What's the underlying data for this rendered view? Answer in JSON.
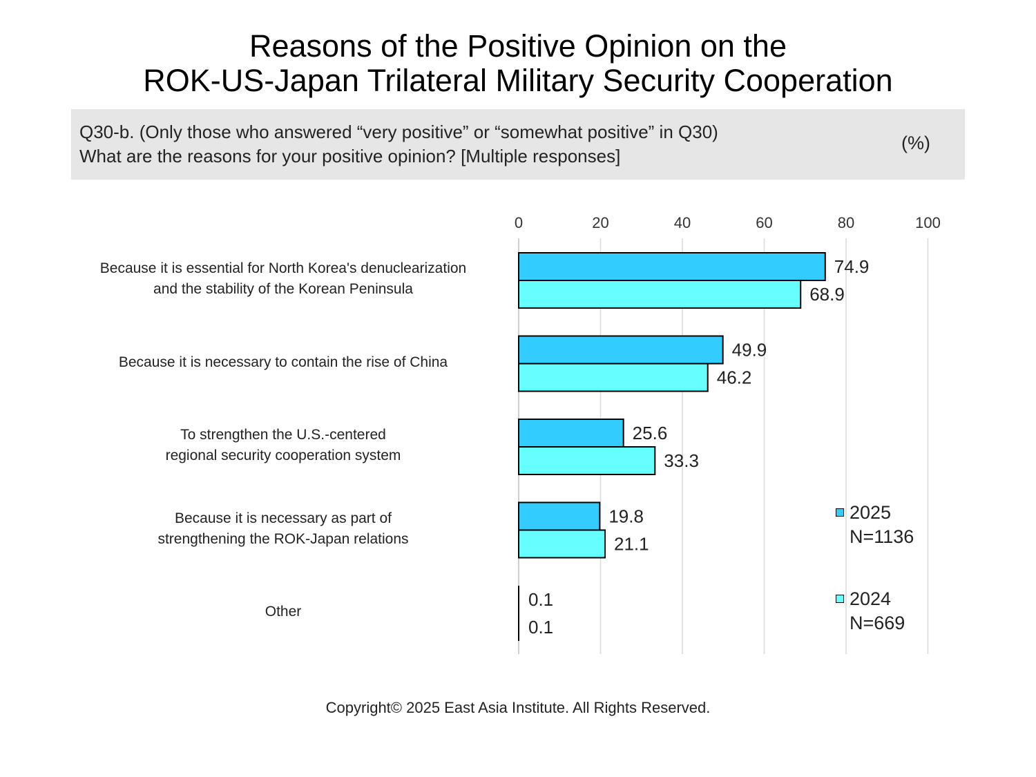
{
  "title": {
    "line1": "Reasons of the Positive Opinion on the",
    "line2": "ROK-US-Japan Trilateral Military Security Cooperation"
  },
  "question": {
    "line1": "Q30-b. (Only those who answered “very positive” or “somewhat positive” in Q30)",
    "line2": "What are the reasons for your positive opinion? [Multiple responses]",
    "unit": "(%)"
  },
  "legend": [
    {
      "label": "2025",
      "sublabel": "N=1136"
    },
    {
      "label": "2024",
      "sublabel": "N=669"
    }
  ],
  "colors": {
    "series2025": "#33ccff",
    "series2024": "#66ffff",
    "grid": "#d9d9d9",
    "box": "#e7e6e6"
  },
  "footer": "Copyright© 2025 East Asia Institute. All Rights Reserved.",
  "chart_data": {
    "type": "bar",
    "orientation": "horizontal",
    "categories": [
      [
        "Because it is essential for North Korea's denuclearization",
        "and the stability of the Korean Peninsula"
      ],
      [
        "Because it is necessary to contain the rise of China"
      ],
      [
        "To strengthen the U.S.-centered",
        "regional security cooperation system"
      ],
      [
        "Because it is necessary as part of",
        "strengthening the ROK-Japan relations"
      ],
      [
        "Other"
      ]
    ],
    "series": [
      {
        "name": "2025",
        "values": [
          74.9,
          49.9,
          25.6,
          19.8,
          0.1
        ]
      },
      {
        "name": "2024",
        "values": [
          68.9,
          46.2,
          33.3,
          21.1,
          0.1
        ]
      }
    ],
    "xlim": [
      0,
      100
    ],
    "xticks": [
      0,
      20,
      40,
      60,
      80,
      100
    ],
    "axis_position": "top",
    "grid": true,
    "legend_position": "right"
  }
}
